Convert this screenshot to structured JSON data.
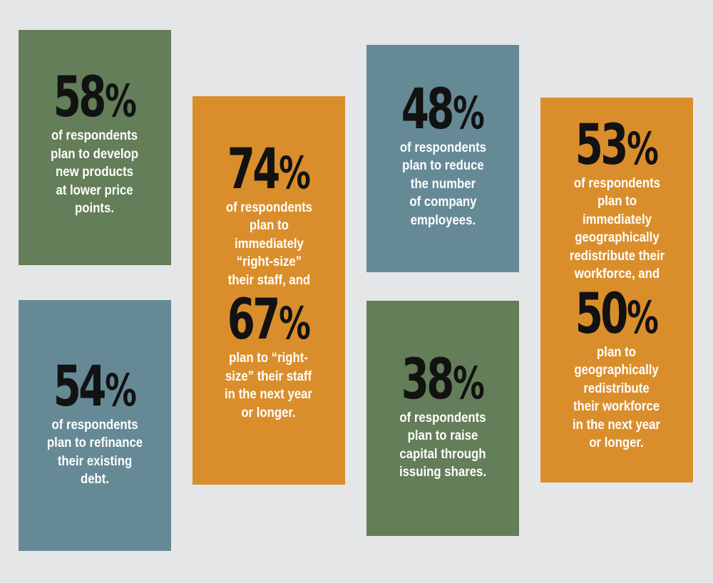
{
  "colors": {
    "background": "#e5e6e8",
    "green": "#637e58",
    "blue": "#658a96",
    "orange": "#da8e2b",
    "number": "#121212",
    "text": "#ffffff"
  },
  "cards": {
    "c1": {
      "number": "58",
      "percent_sign": "%",
      "lines": [
        "of respondents",
        "plan to develop",
        "new products",
        "at lower price",
        "points."
      ]
    },
    "c2": {
      "number": "54",
      "percent_sign": "%",
      "lines": [
        "of respondents",
        "plan to refinance",
        "their existing",
        "debt."
      ]
    },
    "c3": {
      "number": "74",
      "percent_sign": "%",
      "lines": [
        "of respondents",
        "plan to",
        "immediately",
        "“right-size”",
        "their staff, and"
      ],
      "number2": "67",
      "lines2": [
        "plan to “right-",
        "size” their staff",
        "in the next year",
        "or longer."
      ]
    },
    "c4": {
      "number": "48",
      "percent_sign": "%",
      "lines": [
        "of respondents",
        "plan to reduce",
        "the number",
        "of company",
        "employees."
      ]
    },
    "c5": {
      "number": "38",
      "percent_sign": "%",
      "lines": [
        "of respondents",
        "plan to raise",
        "capital through",
        "issuing shares."
      ]
    },
    "c6": {
      "number": "53",
      "percent_sign": "%",
      "lines": [
        "of respondents",
        "plan to",
        "immediately",
        "geographically",
        "redistribute their",
        "workforce, and"
      ],
      "number2": "50",
      "lines2": [
        "plan to",
        "geographically",
        "redistribute",
        "their workforce",
        "in the next year",
        "or longer."
      ]
    }
  }
}
